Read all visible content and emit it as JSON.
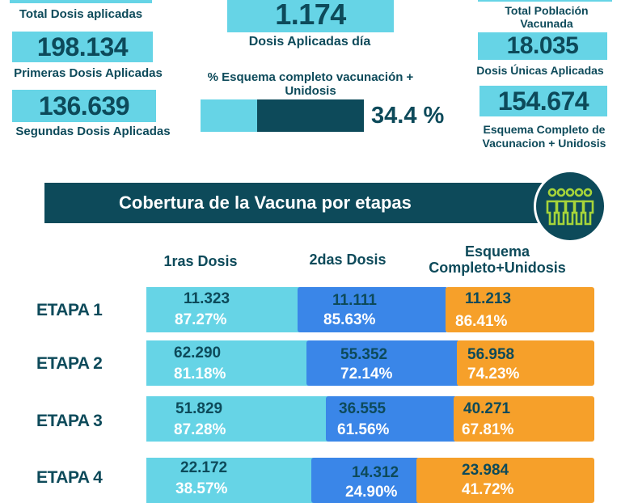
{
  "top_left": {
    "total_dosis_label": "Total Dosis aplicadas",
    "primeras_value": "198.134",
    "primeras_label": "Primeras Dosis Aplicadas",
    "segundas_value": "136.639",
    "segundas_label": "Segundas Dosis Aplicadas"
  },
  "top_center": {
    "dosis_dia_value": "1.174",
    "dosis_dia_label": "Dosis Aplicadas día",
    "esquema_label": "% Esquema completo vacunación + Unidosis",
    "esquema_percent_text": "34.4 %",
    "esquema_percent": 34.4
  },
  "top_right": {
    "poblacion_label": "Total Población Vacunada",
    "unicas_value": "18.035",
    "unicas_label": "Dosis Únicas Aplicadas",
    "completo_value": "154.674",
    "completo_label": "Esquema Completo de Vacunacion + Unidosis"
  },
  "banner": {
    "title": "Cobertura de la Vacuna por etapas",
    "icon": "people-group-icon"
  },
  "columns": [
    "1ras Dosis",
    "2das Dosis",
    "Esquema Completo+Unidosis"
  ],
  "etapas": [
    {
      "label": "ETAPA 1",
      "d1": "11.323",
      "p1": "87.27%",
      "d2": "11.111",
      "p2": "85.63%",
      "d3": "11.213",
      "p3": "86.41%"
    },
    {
      "label": "ETAPA 2",
      "d1": "62.290",
      "p1": "81.18%",
      "d2": "55.352",
      "p2": "72.14%",
      "d3": "56.958",
      "p3": "74.23%"
    },
    {
      "label": "ETAPA 3",
      "d1": "51.829",
      "p1": "87.28%",
      "d2": "36.555",
      "p2": "61.56%",
      "d3": "40.271",
      "p3": "67.81%"
    },
    {
      "label": "ETAPA 4",
      "d1": "22.172",
      "p1": "38.57%",
      "d2": "14.312",
      "p2": "24.90%",
      "d3": "23.984",
      "p3": "41.72%"
    }
  ],
  "colors": {
    "dark": "#0d4a5a",
    "cyan": "#66d4e6",
    "blue": "#3a86e8",
    "orange": "#f6a02a"
  }
}
